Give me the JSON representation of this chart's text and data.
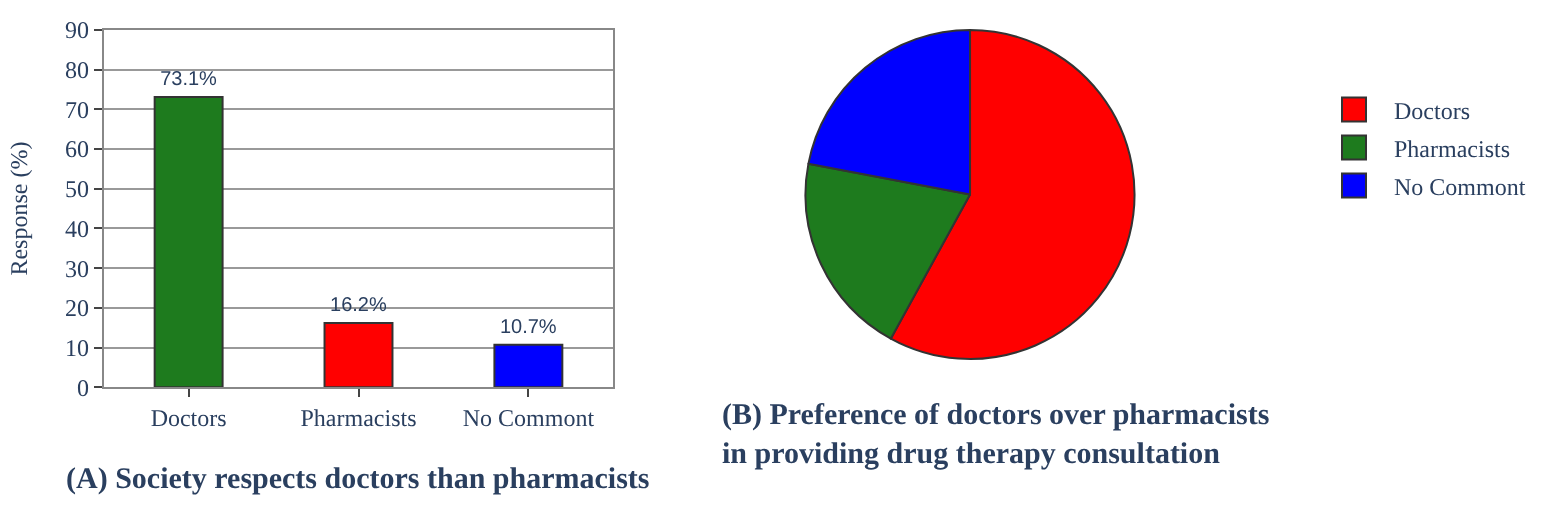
{
  "chart_data": [
    {
      "type": "bar",
      "title": "(A) Society respects doctors than pharmacists",
      "ylabel": "Response (%)",
      "categories": [
        "Doctors",
        "Pharmacists",
        "No Commont"
      ],
      "values": [
        73.1,
        16.2,
        10.7
      ],
      "colors": [
        "#1e7b1e",
        "#ff0000",
        "#0000ff"
      ],
      "value_labels": [
        "73.1%",
        "16.2%",
        "10.7%"
      ],
      "ylim": [
        0,
        90
      ],
      "yticks": [
        0,
        10,
        20,
        30,
        40,
        50,
        60,
        70,
        80,
        90
      ],
      "grid": "y",
      "legend": false
    },
    {
      "type": "pie",
      "title": "(B) Preference of doctors over pharmacists\nin providing drug therapy consultation",
      "categories": [
        "Doctors",
        "Pharmacists",
        "No Commont"
      ],
      "values": [
        58,
        20,
        22
      ],
      "colors": [
        "#ff0000",
        "#1e7b1e",
        "#0000ff"
      ],
      "legend": "right"
    }
  ]
}
